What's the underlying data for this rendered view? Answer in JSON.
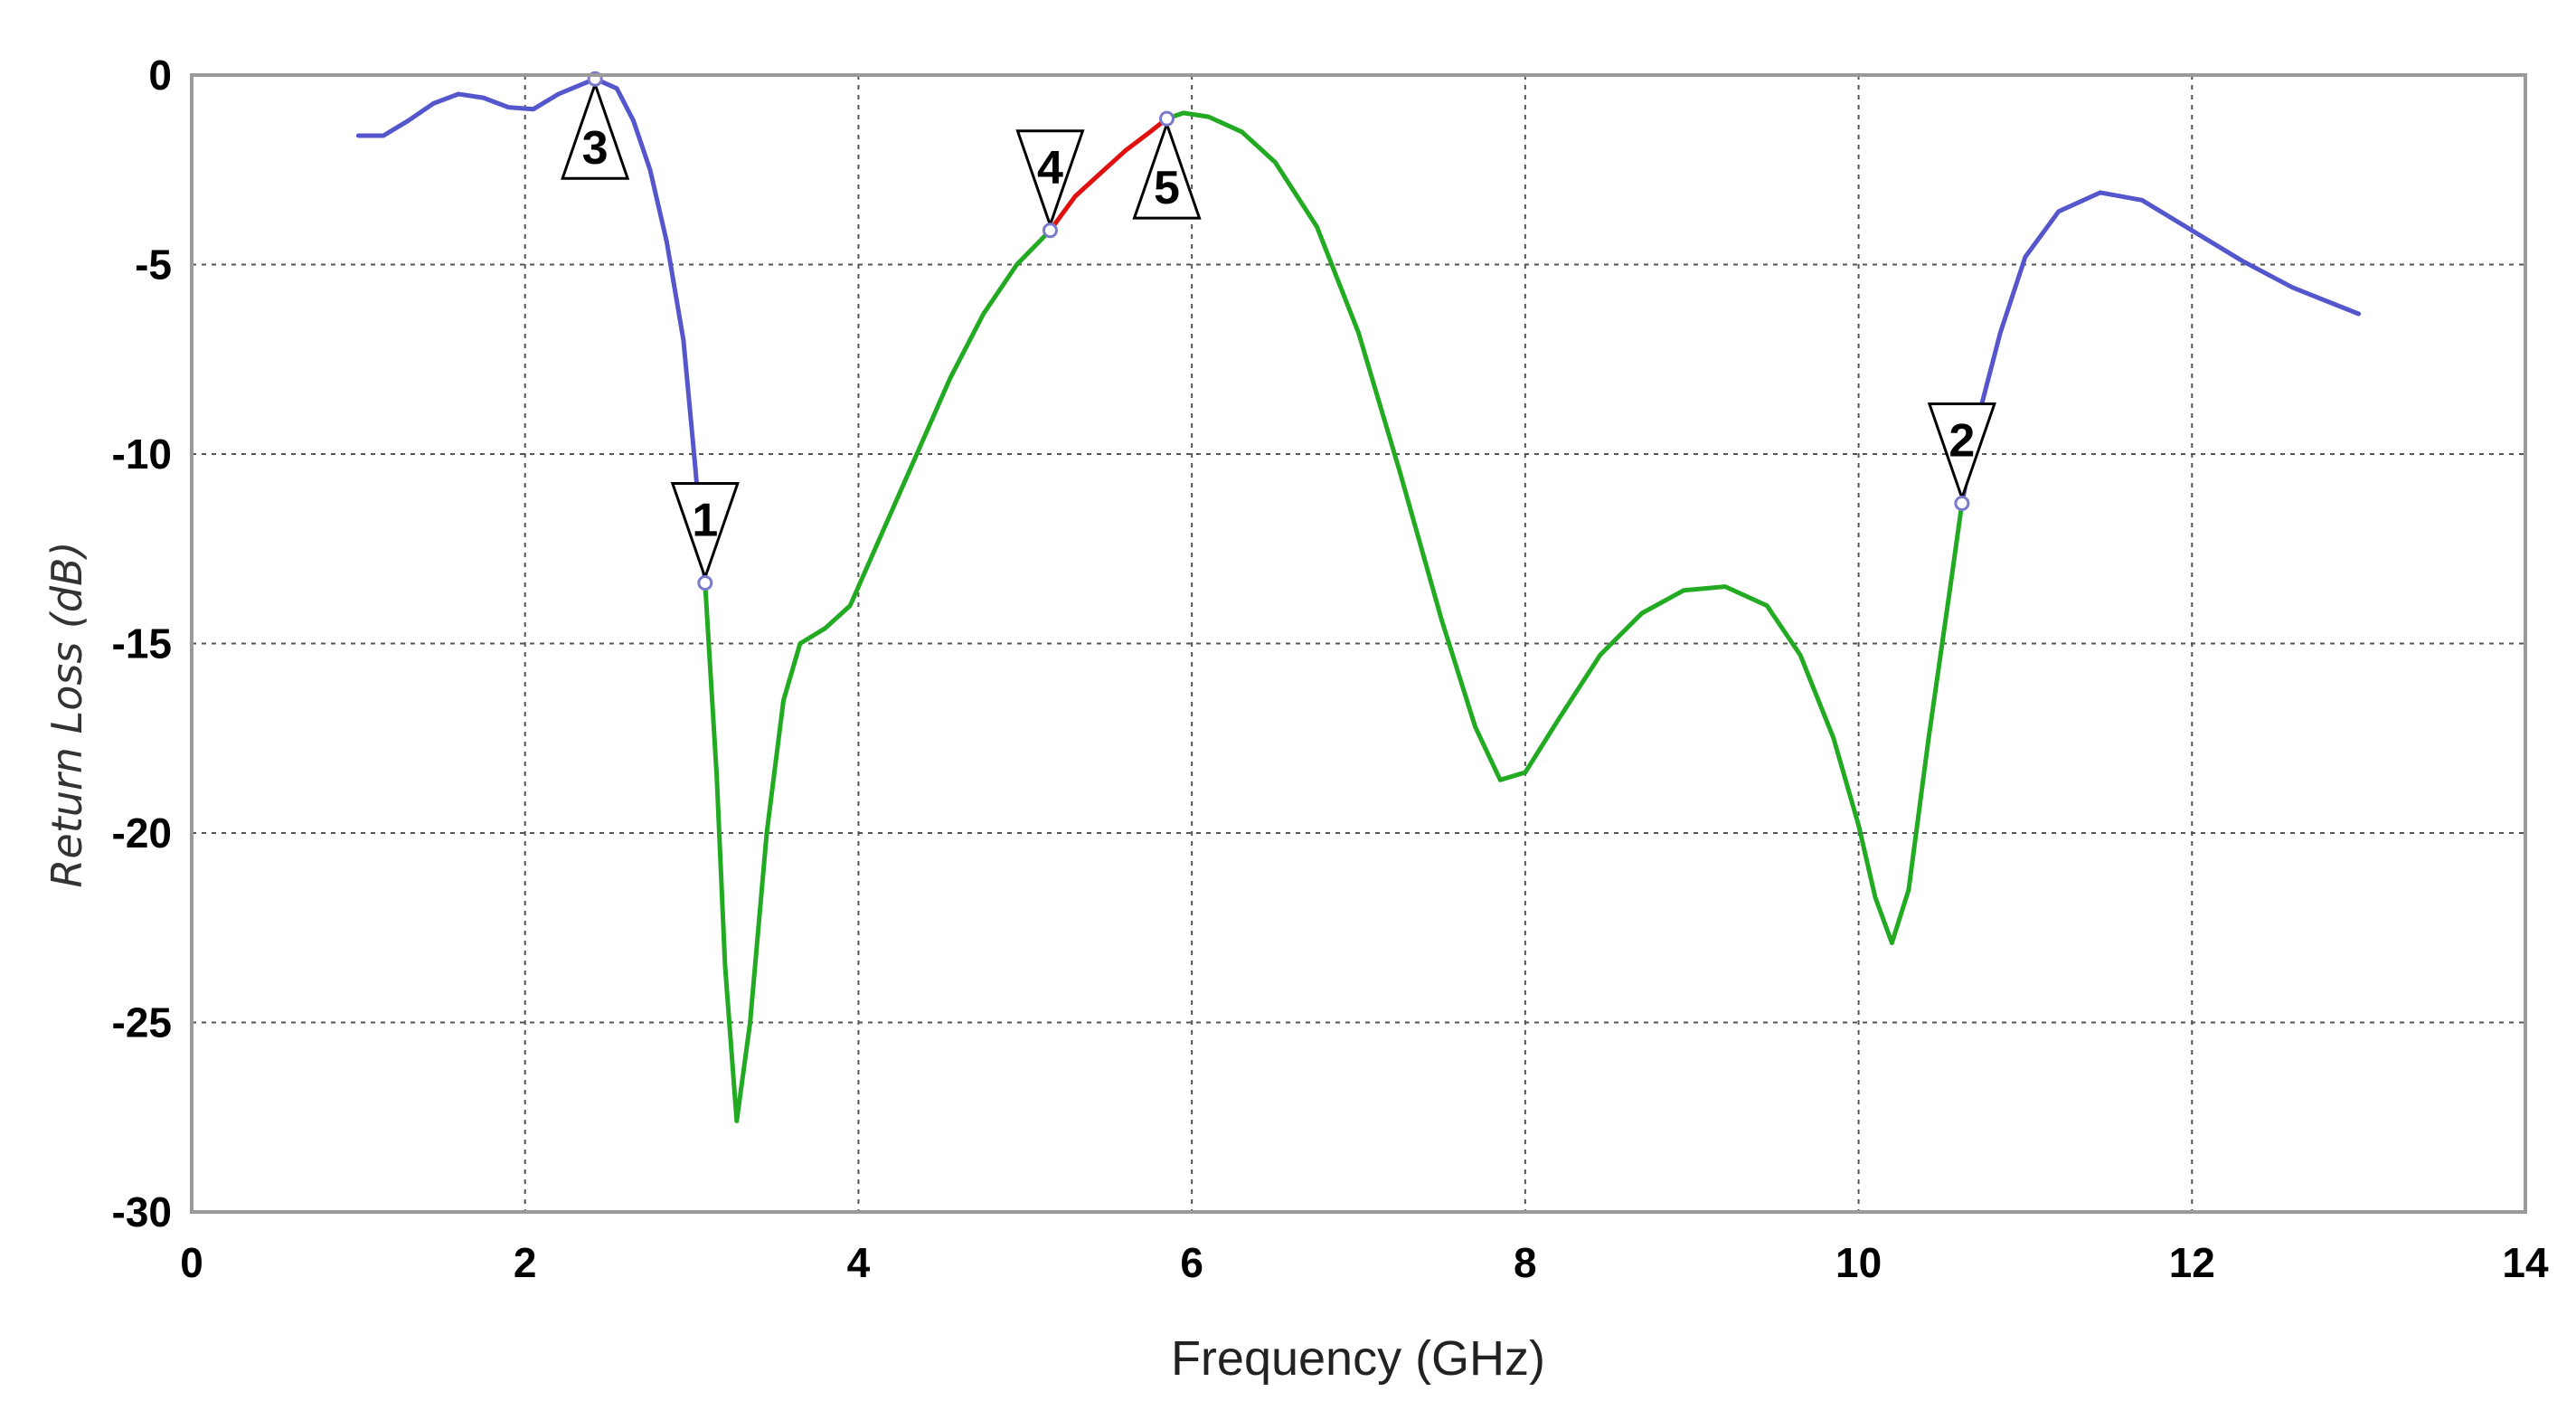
{
  "chart_data": {
    "type": "line",
    "title": "",
    "xlabel": "Frequency (GHz)",
    "ylabel": "Return Loss (dB)",
    "xlim": [
      0,
      14
    ],
    "ylim": [
      -30,
      0
    ],
    "xticks": [
      0,
      2,
      4,
      6,
      8,
      10,
      12,
      14
    ],
    "yticks": [
      0,
      -5,
      -10,
      -15,
      -20,
      -25,
      -30
    ],
    "grid": true,
    "legend": "none",
    "colors": {
      "out_of_band": "#5555cc",
      "in_band": "#22aa22",
      "notch": "#e01010",
      "marker": "#000000"
    },
    "curve": [
      [
        1.0,
        -1.6
      ],
      [
        1.15,
        -1.6
      ],
      [
        1.3,
        -1.2
      ],
      [
        1.45,
        -0.75
      ],
      [
        1.6,
        -0.5
      ],
      [
        1.75,
        -0.6
      ],
      [
        1.9,
        -0.85
      ],
      [
        2.05,
        -0.9
      ],
      [
        2.2,
        -0.5
      ],
      [
        2.42,
        -0.1
      ],
      [
        2.55,
        -0.35
      ],
      [
        2.65,
        -1.2
      ],
      [
        2.75,
        -2.5
      ],
      [
        2.85,
        -4.4
      ],
      [
        2.95,
        -7.0
      ],
      [
        3.02,
        -10.3
      ],
      [
        3.08,
        -13.4
      ],
      [
        3.15,
        -18.5
      ],
      [
        3.2,
        -23.5
      ],
      [
        3.27,
        -27.6
      ],
      [
        3.35,
        -25.0
      ],
      [
        3.45,
        -20.0
      ],
      [
        3.55,
        -16.5
      ],
      [
        3.65,
        -15.0
      ],
      [
        3.8,
        -14.6
      ],
      [
        3.95,
        -14.0
      ],
      [
        4.15,
        -12.0
      ],
      [
        4.35,
        -10.0
      ],
      [
        4.55,
        -8.0
      ],
      [
        4.75,
        -6.3
      ],
      [
        4.95,
        -5.0
      ],
      [
        5.15,
        -4.1
      ],
      [
        5.3,
        -3.2
      ],
      [
        5.45,
        -2.6
      ],
      [
        5.6,
        -2.0
      ],
      [
        5.75,
        -1.5
      ],
      [
        5.85,
        -1.15
      ],
      [
        5.95,
        -1.0
      ],
      [
        6.1,
        -1.1
      ],
      [
        6.3,
        -1.5
      ],
      [
        6.5,
        -2.3
      ],
      [
        6.75,
        -4.0
      ],
      [
        7.0,
        -6.8
      ],
      [
        7.25,
        -10.5
      ],
      [
        7.5,
        -14.4
      ],
      [
        7.7,
        -17.2
      ],
      [
        7.85,
        -18.6
      ],
      [
        8.0,
        -18.4
      ],
      [
        8.2,
        -17.0
      ],
      [
        8.45,
        -15.3
      ],
      [
        8.7,
        -14.2
      ],
      [
        8.95,
        -13.6
      ],
      [
        9.2,
        -13.5
      ],
      [
        9.45,
        -14.0
      ],
      [
        9.65,
        -15.3
      ],
      [
        9.85,
        -17.5
      ],
      [
        10.0,
        -19.8
      ],
      [
        10.1,
        -21.7
      ],
      [
        10.2,
        -22.9
      ],
      [
        10.3,
        -21.5
      ],
      [
        10.42,
        -17.5
      ],
      [
        10.55,
        -13.5
      ],
      [
        10.62,
        -11.3
      ],
      [
        10.72,
        -9.0
      ],
      [
        10.85,
        -6.8
      ],
      [
        11.0,
        -4.8
      ],
      [
        11.2,
        -3.6
      ],
      [
        11.45,
        -3.1
      ],
      [
        11.7,
        -3.3
      ],
      [
        12.0,
        -4.1
      ],
      [
        12.3,
        -4.9
      ],
      [
        12.6,
        -5.6
      ],
      [
        13.0,
        -6.3
      ]
    ],
    "segments": [
      {
        "name": "",
        "color": "#5555cc",
        "x_range": [
          1.0,
          3.08
        ]
      },
      {
        "name": "",
        "color": "#22aa22",
        "x_range": [
          3.08,
          5.15
        ]
      },
      {
        "name": "",
        "color": "#e01010",
        "x_range": [
          5.15,
          5.85
        ]
      },
      {
        "name": "",
        "color": "#22aa22",
        "x_range": [
          5.85,
          10.62
        ]
      },
      {
        "name": "",
        "color": "#5555cc",
        "x_range": [
          10.62,
          13.0
        ]
      }
    ],
    "markers": [
      {
        "label": "1",
        "x": 3.08,
        "y": -13.4,
        "direction": "down"
      },
      {
        "label": "2",
        "x": 10.62,
        "y": -11.3,
        "direction": "down"
      },
      {
        "label": "3",
        "x": 2.42,
        "y": -0.1,
        "direction": "up"
      },
      {
        "label": "4",
        "x": 5.15,
        "y": -4.1,
        "direction": "down"
      },
      {
        "label": "5",
        "x": 5.85,
        "y": -1.15,
        "direction": "up"
      }
    ]
  }
}
